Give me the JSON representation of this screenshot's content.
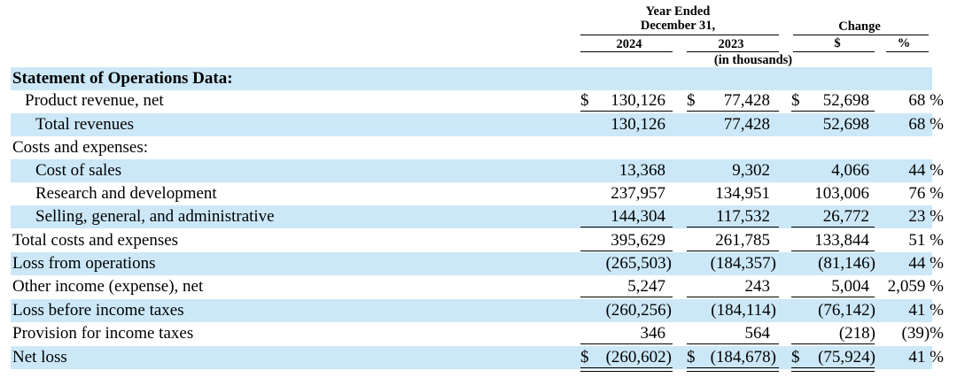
{
  "header": {
    "year_ended": "Year Ended",
    "december": "December 31,",
    "col_2024": "2024",
    "col_2023": "2023",
    "in_thousands": "(in thousands)",
    "change": "Change",
    "col_dollar": "$",
    "col_pct": "%"
  },
  "rows": [
    {
      "label": "Statement of Operations Data:",
      "bold": true,
      "shaded": true,
      "indent": 0,
      "v2024": "",
      "v2023": "",
      "vchg": "",
      "pct": "",
      "dollar": false,
      "under": "none"
    },
    {
      "label": "Product revenue, net",
      "shaded": false,
      "indent": 1,
      "v2024": "130,126",
      "v2023": "77,428",
      "vchg": "52,698",
      "pct": "68 %",
      "dollar": true,
      "under": "single"
    },
    {
      "label": "Total revenues",
      "shaded": true,
      "indent": 2,
      "v2024": "130,126",
      "v2023": "77,428",
      "vchg": "52,698",
      "pct": "68 %",
      "dollar": false,
      "under": "none"
    },
    {
      "label": "Costs and expenses:",
      "shaded": false,
      "indent": 0,
      "v2024": "",
      "v2023": "",
      "vchg": "",
      "pct": "",
      "dollar": false,
      "under": "none"
    },
    {
      "label": "Cost of sales",
      "shaded": true,
      "indent": 2,
      "v2024": "13,368",
      "v2023": "9,302",
      "vchg": "4,066",
      "pct": "44 %",
      "dollar": false,
      "under": "none"
    },
    {
      "label": "Research and development",
      "shaded": false,
      "indent": 2,
      "v2024": "237,957",
      "v2023": "134,951",
      "vchg": "103,006",
      "pct": "76 %",
      "dollar": false,
      "under": "none"
    },
    {
      "label": "Selling, general, and administrative",
      "shaded": true,
      "indent": 2,
      "v2024": "144,304",
      "v2023": "117,532",
      "vchg": "26,772",
      "pct": "23 %",
      "dollar": false,
      "under": "single"
    },
    {
      "label": "Total costs and expenses",
      "shaded": false,
      "indent": 0,
      "v2024": "395,629",
      "v2023": "261,785",
      "vchg": "133,844",
      "pct": "51 %",
      "dollar": false,
      "under": "single"
    },
    {
      "label": "Loss from operations",
      "shaded": true,
      "indent": 0,
      "v2024": "(265,503)",
      "v2023": "(184,357)",
      "vchg": "(81,146)",
      "pct": "44 %",
      "dollar": false,
      "under": "none"
    },
    {
      "label": "Other income (expense), net",
      "shaded": false,
      "indent": 0,
      "v2024": "5,247",
      "v2023": "243",
      "vchg": "5,004",
      "pct": "2,059 %",
      "dollar": false,
      "under": "single"
    },
    {
      "label": "Loss before income taxes",
      "shaded": true,
      "indent": 0,
      "v2024": "(260,256)",
      "v2023": "(184,114)",
      "vchg": "(76,142)",
      "pct": "41 %",
      "dollar": false,
      "under": "none"
    },
    {
      "label": "Provision for income taxes",
      "shaded": false,
      "indent": 0,
      "v2024": "346",
      "v2023": "564",
      "vchg": "(218)",
      "pct": "(39)%",
      "dollar": false,
      "under": "single"
    },
    {
      "label": "Net loss",
      "shaded": true,
      "indent": 0,
      "v2024": "(260,602)",
      "v2023": "(184,678)",
      "vchg": "(75,924)",
      "pct": "41 %",
      "dollar": true,
      "under": "double"
    }
  ],
  "colors": {
    "shade": "#cce8f8"
  }
}
